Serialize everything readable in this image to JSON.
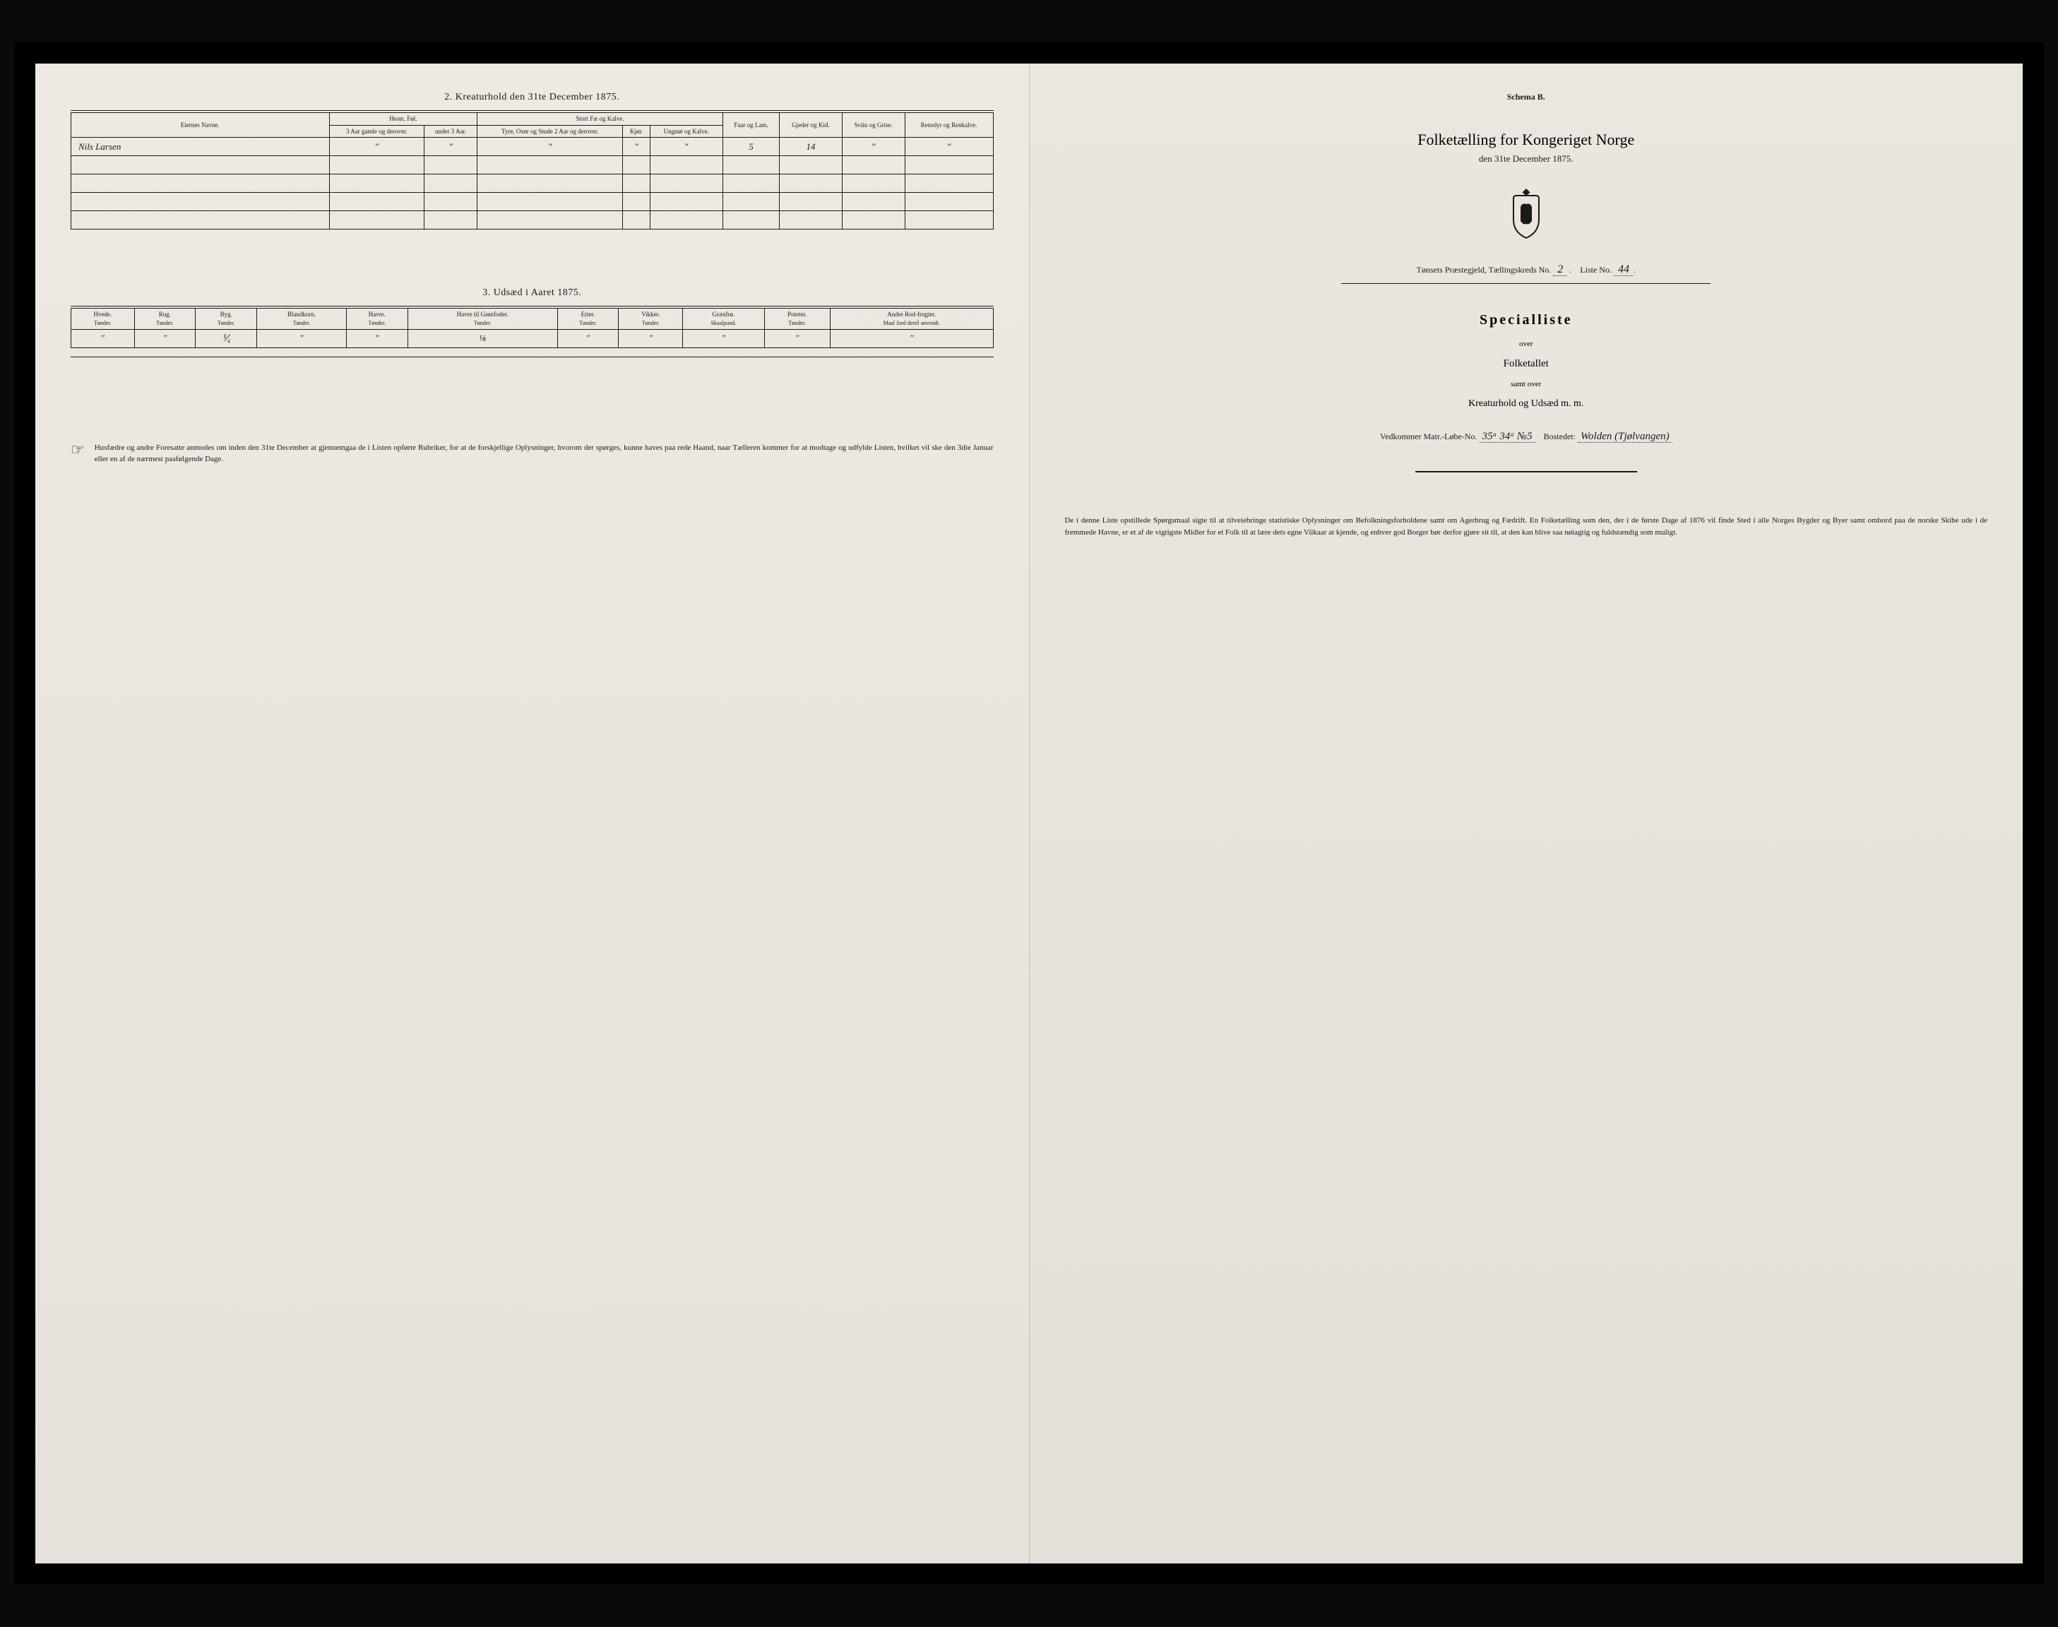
{
  "left": {
    "section2": {
      "title": "2. Kreaturhold den 31te December 1875.",
      "group_headers": [
        "Eiernes Navne.",
        "Heste, Føl.",
        "Stort Fæ og Kalve.",
        "Faar og Lam.",
        "Gjeder og Kid.",
        "Sviin og Grise.",
        "Rensdyr og Renkalve."
      ],
      "sub_headers": {
        "heste": [
          "3 Aar gamle og derover.",
          "under 3 Aar."
        ],
        "fae": [
          "Tyre, Oxer og Stude 2 Aar og derover.",
          "Kjør.",
          "Ungnøt og Kalve."
        ]
      },
      "rows": [
        {
          "name": "Nils Larsen",
          "values": [
            "\"",
            "\"",
            "\"",
            "\"",
            "\"",
            "5",
            "14",
            "\"",
            "\""
          ]
        }
      ],
      "empty_rows": 4
    },
    "section3": {
      "title": "3. Udsæd i Aaret 1875.",
      "columns": [
        {
          "label": "Hvede.",
          "unit": "Tønder."
        },
        {
          "label": "Rug.",
          "unit": "Tønder."
        },
        {
          "label": "Byg.",
          "unit": "Tønder."
        },
        {
          "label": "Blandkorn.",
          "unit": "Tønder."
        },
        {
          "label": "Havre.",
          "unit": "Tønder."
        },
        {
          "label": "Havre til Grønfoder.",
          "unit": "Tønder."
        },
        {
          "label": "Erter.",
          "unit": "Tønder."
        },
        {
          "label": "Vikker.",
          "unit": "Tønder."
        },
        {
          "label": "Græsfrø.",
          "unit": "Skaalpund."
        },
        {
          "label": "Poteter.",
          "unit": "Tønder."
        },
        {
          "label": "Andre Rod-frugter.",
          "unit": "Maal Jord dertil anvendt."
        }
      ],
      "row": [
        "\"",
        "\"",
        "⅟₄",
        "\"",
        "\"",
        "⅛",
        "\"",
        "\"",
        "\"",
        "\"",
        "\""
      ]
    },
    "footer": "Husfædre og andre Foresatte anmodes om inden den 31te December at gjennemgaa de i Listen opførte Rubriker, for at de forskjellige Oplysninger, hvorom der spørges, kunne haves paa rede Haand, naar Tælleren kommer for at modtage og udfylde Listen, hvilket vil ske den 3die Januar eller en af de nærmest paafølgende Dage."
  },
  "right": {
    "schema": "Schema B.",
    "title": "Folketælling for Kongeriget Norge",
    "date": "den 31te December 1875.",
    "district_prefix": "Tønsets Præstegjeld,  Tællingskreds No.",
    "district_no": "2",
    "liste_label": "Liste No.",
    "liste_no": "44",
    "specialliste": "Specialliste",
    "over": "over",
    "folketallet": "Folketallet",
    "samt_over": "samt over",
    "kreaturhold": "Kreaturhold og Udsæd m. m.",
    "vedkommer_prefix": "Vedkommer Matr.-Løbe-No.",
    "matr_no": "35ᵃ 34ᵃ №5",
    "bostedet_label": "Bostedet:",
    "bostedet": "Wolden (Tjølvangen)",
    "footer": "De i denne Liste opstillede Spørgsmaal sigte til at tilveiebringe statistiske Oplysninger om Befolkningsforholdene samt om Agerbrug og Fædrift. En Folketælling som den, der i de første Dage af 1876 vil finde Sted i alle Norges Bygder og Byer samt ombord paa de norske Skibe ude i de fremmede Havne, er et af de vigtigste Midler for et Folk til at lære dets egne Vilkaar at kjende, og enhver god Borger bør derfor gjøre sit til, at den kan blive saa nøiagtig og fuldstændig som muligt."
  },
  "style": {
    "paper_bg": "#e8e4dc",
    "ink": "#1a1a1a",
    "border_width": 1.5
  }
}
